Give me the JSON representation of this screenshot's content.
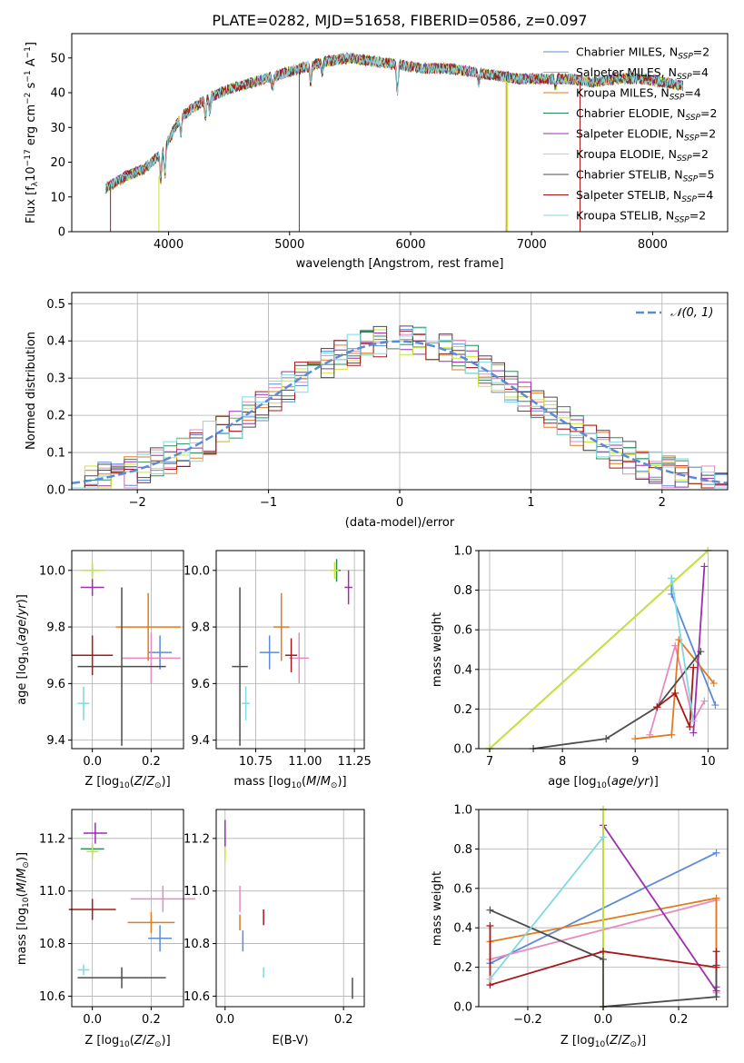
{
  "title": "PLATE=0282, MJD=51658, FIBERID=0586, z=0.097",
  "colors": {
    "Chabrier MILES": "#5b8bd8",
    "Salpeter MILES": "#e58bbf",
    "Kroupa MILES": "#e07b20",
    "Chabrier ELODIE": "#2e8b57",
    "Salpeter ELODIE": "#9b2fae",
    "Kroupa ELODIE": "#c9e635",
    "Chabrier STELIB": "#4d4d4d",
    "Salpeter STELIB": "#a81818",
    "Kroupa STELIB": "#7fd9e0"
  },
  "chart_data": [
    {
      "id": "spectrum",
      "type": "line",
      "xlabel": "wavelength [Angstrom, rest frame]",
      "ylabel": "Flux [fλ10⁻¹⁷ erg cm⁻² s⁻¹ A⁻¹]",
      "xlim": [
        3200,
        8620
      ],
      "ylim": [
        0,
        57
      ],
      "xticks": [
        4000,
        5000,
        6000,
        7000,
        8000
      ],
      "yticks": [
        0,
        10,
        20,
        30,
        40,
        50
      ],
      "grid": false,
      "legend_position": "top-right",
      "legend": [
        "Chabrier MILES, N_SSP=2",
        "Salpeter MILES, N_SSP=4",
        "Kroupa MILES, N_SSP=4",
        "Chabrier ELODIE, N_SSP=2",
        "Salpeter ELODIE, N_SSP=2",
        "Kroupa ELODIE, N_SSP=2",
        "Chabrier STELIB, N_SSP=5",
        "Salpeter STELIB, N_SSP=4",
        "Kroupa STELIB, N_SSP=2"
      ],
      "continuum_x": [
        3500,
        3650,
        3800,
        3950,
        4100,
        4300,
        4500,
        4700,
        4900,
        5100,
        5300,
        5500,
        5700,
        5900,
        6100,
        6300,
        6500,
        6700,
        6900,
        7100,
        7300,
        7500,
        7700,
        7900,
        8100,
        8250
      ],
      "continuum_y": [
        13,
        16,
        18,
        23,
        33,
        38,
        41,
        43,
        45,
        47,
        49,
        50,
        49,
        48,
        47,
        47,
        46,
        45,
        44,
        44,
        44,
        43,
        44,
        44,
        43,
        42
      ],
      "spikes": [
        {
          "series": "Salpeter STELIB",
          "x": 3520,
          "ymin": 0,
          "ymax": 12
        },
        {
          "series": "Kroupa ELODIE",
          "x": 3920,
          "ymin": 0,
          "ymax": 16
        },
        {
          "series": "Chabrier STELIB",
          "x": 5080,
          "ymin": 0,
          "ymax": 46
        },
        {
          "series": "Kroupa MILES",
          "x": 6790,
          "ymin": 0,
          "ymax": 43
        },
        {
          "series": "Kroupa ELODIE",
          "x": 6800,
          "ymin": 0,
          "ymax": 43
        },
        {
          "series": "Salpeter STELIB",
          "x": 7400,
          "ymin": 0,
          "ymax": 43
        }
      ]
    },
    {
      "id": "residuals",
      "type": "histogram",
      "xlabel": "(data-model)/error",
      "ylabel": "Normed distribution",
      "xlim": [
        -2.5,
        2.5
      ],
      "ylim": [
        0,
        0.53
      ],
      "xticks": [
        -2,
        -1,
        0,
        1,
        2
      ],
      "yticks": [
        0.0,
        0.1,
        0.2,
        0.3,
        0.4,
        0.5
      ],
      "grid": true,
      "legend": [
        "𝒩(0, 1)"
      ],
      "legend_position": "top-right",
      "bin_width": 0.1
    },
    {
      "id": "z-age",
      "type": "errorbar",
      "xlabel": "Z [log₁₀(Z/Z⊙)]",
      "ylabel": "age  [log₁₀(age/yr)]",
      "xlim": [
        -0.07,
        0.31
      ],
      "ylim": [
        9.37,
        10.07
      ],
      "xticks": [
        0.0,
        0.2
      ],
      "yticks": [
        9.4,
        9.6,
        9.8,
        10.0
      ],
      "grid": true,
      "points": [
        {
          "series": "Chabrier MILES",
          "x": 0.23,
          "y": 9.71,
          "xerr": 0.04,
          "yerr": 0.06
        },
        {
          "series": "Salpeter MILES",
          "x": 0.2,
          "y": 9.69,
          "xerr": 0.1,
          "yerr": 0.09
        },
        {
          "series": "Kroupa MILES",
          "x": 0.19,
          "y": 9.8,
          "xerr": 0.11,
          "yerr": 0.12
        },
        {
          "series": "Chabrier ELODIE",
          "x": 0.0,
          "y": 10.0,
          "xerr": 0.02,
          "yerr": 0.02
        },
        {
          "series": "Salpeter ELODIE",
          "x": 0.0,
          "y": 9.94,
          "xerr": 0.04,
          "yerr": 0.03
        },
        {
          "series": "Kroupa ELODIE",
          "x": 0.0,
          "y": 10.0,
          "xerr": 0.04,
          "yerr": 0.03
        },
        {
          "series": "Chabrier STELIB",
          "x": 0.1,
          "y": 9.66,
          "xerr": 0.15,
          "yerr": 0.28
        },
        {
          "series": "Salpeter STELIB",
          "x": 0.0,
          "y": 9.7,
          "xerr": 0.07,
          "yerr": 0.07
        },
        {
          "series": "Kroupa STELIB",
          "x": -0.03,
          "y": 9.53,
          "xerr": 0.02,
          "yerr": 0.06
        }
      ]
    },
    {
      "id": "mass-age",
      "type": "errorbar",
      "xlabel": "mass [log₁₀(M/M⊙)]",
      "ylabel": "",
      "xlim": [
        10.55,
        11.3
      ],
      "ylim": [
        9.37,
        10.07
      ],
      "xticks": [
        10.75,
        11.0,
        11.25
      ],
      "yticks": [
        9.4,
        9.6,
        9.8,
        10.0
      ],
      "grid": true,
      "points": [
        {
          "series": "Chabrier MILES",
          "x": 10.82,
          "y": 9.71,
          "xerr": 0.05,
          "yerr": 0.06
        },
        {
          "series": "Salpeter MILES",
          "x": 10.97,
          "y": 9.69,
          "xerr": 0.05,
          "yerr": 0.09
        },
        {
          "series": "Kroupa MILES",
          "x": 10.88,
          "y": 9.8,
          "xerr": 0.04,
          "yerr": 0.12
        },
        {
          "series": "Chabrier ELODIE",
          "x": 11.16,
          "y": 10.0,
          "xerr": 0.02,
          "yerr": 0.04
        },
        {
          "series": "Salpeter ELODIE",
          "x": 11.22,
          "y": 9.94,
          "xerr": 0.02,
          "yerr": 0.06
        },
        {
          "series": "Kroupa ELODIE",
          "x": 11.15,
          "y": 10.0,
          "xerr": 0.02,
          "yerr": 0.03
        },
        {
          "series": "Chabrier STELIB",
          "x": 10.67,
          "y": 9.66,
          "xerr": 0.04,
          "yerr": 0.28
        },
        {
          "series": "Salpeter STELIB",
          "x": 10.93,
          "y": 9.7,
          "xerr": 0.03,
          "yerr": 0.06
        },
        {
          "series": "Kroupa STELIB",
          "x": 10.7,
          "y": 9.53,
          "xerr": 0.02,
          "yerr": 0.06
        }
      ]
    },
    {
      "id": "age-weight",
      "type": "line",
      "xlabel": "age  [log₁₀(age/yr)]",
      "ylabel": "mass weight",
      "xlim": [
        6.85,
        10.27
      ],
      "ylim": [
        0,
        1
      ],
      "xticks": [
        7,
        8,
        9,
        10
      ],
      "yticks": [
        0.0,
        0.2,
        0.4,
        0.6,
        0.8,
        1.0
      ],
      "grid": true,
      "series": [
        {
          "name": "Chabrier MILES",
          "x": [
            9.5,
            9.5,
            10.1
          ],
          "y": [
            0.86,
            0.78,
            0.22
          ]
        },
        {
          "name": "Salpeter MILES",
          "x": [
            9.2,
            9.55,
            9.8,
            9.95
          ],
          "y": [
            0.07,
            0.52,
            0.14,
            0.24
          ]
        },
        {
          "name": "Kroupa MILES",
          "x": [
            9.0,
            9.5,
            9.6,
            10.08
          ],
          "y": [
            0.05,
            0.07,
            0.55,
            0.33
          ]
        },
        {
          "name": "Chabrier ELODIE",
          "x": [
            7.0,
            10.0
          ],
          "y": [
            0.0,
            1.0
          ]
        },
        {
          "name": "Salpeter ELODIE",
          "x": [
            9.8,
            9.95
          ],
          "y": [
            0.08,
            0.92
          ]
        },
        {
          "name": "Kroupa ELODIE",
          "x": [
            7.0,
            10.0
          ],
          "y": [
            0.0,
            1.0
          ]
        },
        {
          "name": "Chabrier STELIB",
          "x": [
            7.6,
            8.6,
            9.3,
            9.9
          ],
          "y": [
            0.0,
            0.05,
            0.21,
            0.49
          ]
        },
        {
          "name": "Salpeter STELIB",
          "x": [
            9.3,
            9.55,
            9.75,
            9.8
          ],
          "y": [
            0.21,
            0.28,
            0.11,
            0.41
          ]
        },
        {
          "name": "Kroupa STELIB",
          "x": [
            9.5,
            9.8
          ],
          "y": [
            0.86,
            0.14
          ]
        }
      ]
    },
    {
      "id": "z-mass",
      "type": "errorbar",
      "xlabel": "Z [log₁₀(Z/Z⊙)]",
      "ylabel": "mass [log₁₀(M/M⊙)]",
      "xlim": [
        -0.07,
        0.31
      ],
      "ylim": [
        10.56,
        11.31
      ],
      "xticks": [
        0.0,
        0.2
      ],
      "yticks": [
        10.6,
        10.8,
        11.0,
        11.2
      ],
      "grid": true,
      "points": [
        {
          "series": "Chabrier MILES",
          "x": 0.23,
          "y": 10.82,
          "xerr": 0.04,
          "yerr": 0.05
        },
        {
          "series": "Salpeter MILES",
          "x": 0.24,
          "y": 10.97,
          "xerr": 0.11,
          "yerr": 0.05
        },
        {
          "series": "Kroupa MILES",
          "x": 0.2,
          "y": 10.88,
          "xerr": 0.08,
          "yerr": 0.04
        },
        {
          "series": "Chabrier ELODIE",
          "x": 0.0,
          "y": 11.16,
          "xerr": 0.04,
          "yerr": 0.02
        },
        {
          "series": "Salpeter ELODIE",
          "x": 0.01,
          "y": 11.22,
          "xerr": 0.04,
          "yerr": 0.04
        },
        {
          "series": "Kroupa ELODIE",
          "x": 0.0,
          "y": 11.15,
          "xerr": 0.02,
          "yerr": 0.03
        },
        {
          "series": "Chabrier STELIB",
          "x": 0.1,
          "y": 10.67,
          "xerr": 0.15,
          "yerr": 0.04
        },
        {
          "series": "Salpeter STELIB",
          "x": 0.0,
          "y": 10.93,
          "xerr": 0.08,
          "yerr": 0.04
        },
        {
          "series": "Kroupa STELIB",
          "x": -0.03,
          "y": 10.7,
          "xerr": 0.02,
          "yerr": 0.02
        }
      ]
    },
    {
      "id": "ebv-mass",
      "type": "errorbar",
      "xlabel": "E(B-V)",
      "ylabel": "",
      "xlim": [
        -0.015,
        0.235
      ],
      "ylim": [
        10.56,
        11.31
      ],
      "xticks": [
        0.0,
        0.2
      ],
      "yticks": [
        10.6,
        10.8,
        11.0,
        11.2
      ],
      "grid": true,
      "points": [
        {
          "series": "Chabrier MILES",
          "x": 0.03,
          "y": 10.81,
          "xerr": 0.0,
          "yerr": 0.04
        },
        {
          "series": "Salpeter MILES",
          "x": 0.025,
          "y": 10.97,
          "xerr": 0.0,
          "yerr": 0.05
        },
        {
          "series": "Kroupa MILES",
          "x": 0.025,
          "y": 10.88,
          "xerr": 0.0,
          "yerr": 0.03
        },
        {
          "series": "Chabrier ELODIE",
          "x": 0.0,
          "y": 11.16,
          "xerr": 0.0,
          "yerr": 0.02
        },
        {
          "series": "Salpeter ELODIE",
          "x": 0.0,
          "y": 11.22,
          "xerr": 0.0,
          "yerr": 0.05
        },
        {
          "series": "Kroupa ELODIE",
          "x": 0.0,
          "y": 11.14,
          "xerr": 0.0,
          "yerr": 0.03
        },
        {
          "series": "Chabrier STELIB",
          "x": 0.215,
          "y": 10.63,
          "xerr": 0.0,
          "yerr": 0.04
        },
        {
          "series": "Salpeter STELIB",
          "x": 0.065,
          "y": 10.9,
          "xerr": 0.0,
          "yerr": 0.03
        },
        {
          "series": "Kroupa STELIB",
          "x": 0.065,
          "y": 10.69,
          "xerr": 0.0,
          "yerr": 0.02
        }
      ]
    },
    {
      "id": "z-weight",
      "type": "line",
      "xlabel": "Z [log₁₀(Z/Z⊙)]",
      "ylabel": "mass weight",
      "xlim": [
        -0.33,
        0.33
      ],
      "ylim": [
        0,
        1
      ],
      "xticks": [
        -0.2,
        0.0,
        0.2
      ],
      "yticks": [
        0.0,
        0.2,
        0.4,
        0.6,
        0.8,
        1.0
      ],
      "grid": true,
      "series": [
        {
          "name": "Chabrier MILES",
          "x": [
            -0.3,
            0.3
          ],
          "y": [
            0.22,
            0.78
          ]
        },
        {
          "name": "Salpeter MILES",
          "x": [
            -0.3,
            0.3,
            0.3
          ],
          "y": [
            0.24,
            0.54,
            0.07
          ]
        },
        {
          "name": "Kroupa MILES",
          "x": [
            -0.3,
            0.3,
            0.3
          ],
          "y": [
            0.33,
            0.55,
            0.05
          ]
        },
        {
          "name": "Chabrier ELODIE",
          "x": [
            0.0,
            0.0
          ],
          "y": [
            0.0,
            1.0
          ]
        },
        {
          "name": "Salpeter ELODIE",
          "x": [
            0.0,
            0.3,
            0.3
          ],
          "y": [
            0.92,
            0.08,
            0.1
          ]
        },
        {
          "name": "Kroupa ELODIE",
          "x": [
            0.0,
            0.0
          ],
          "y": [
            0.0,
            1.0
          ]
        },
        {
          "name": "Chabrier STELIB",
          "x": [
            -0.3,
            0.0,
            0.0,
            0.3,
            0.3
          ],
          "y": [
            0.49,
            0.24,
            0.0,
            0.05,
            0.21
          ]
        },
        {
          "name": "Salpeter STELIB",
          "x": [
            -0.3,
            -0.3,
            0.0,
            0.3,
            0.3
          ],
          "y": [
            0.41,
            0.11,
            0.28,
            0.2,
            0.28
          ]
        },
        {
          "name": "Kroupa STELIB",
          "x": [
            -0.3,
            0.0
          ],
          "y": [
            0.14,
            0.86
          ]
        }
      ]
    }
  ]
}
